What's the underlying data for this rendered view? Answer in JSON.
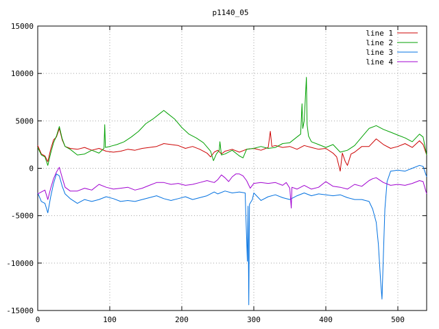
{
  "chart_data": {
    "type": "line",
    "title": "p1140_05",
    "xlabel": "",
    "ylabel": "",
    "xlim": [
      0,
      540
    ],
    "ylim": [
      -15000,
      15000
    ],
    "x_ticks": [
      0,
      100,
      200,
      300,
      400,
      500
    ],
    "y_ticks": [
      -15000,
      -10000,
      -5000,
      0,
      5000,
      10000,
      15000
    ],
    "grid": true,
    "legend_position": "top-right",
    "series": [
      {
        "name": "line 1",
        "color": "#cc0000",
        "points": [
          [
            0,
            2400
          ],
          [
            5,
            1500
          ],
          [
            10,
            1300
          ],
          [
            14,
            700
          ],
          [
            18,
            2000
          ],
          [
            22,
            3000
          ],
          [
            26,
            3300
          ],
          [
            30,
            4200
          ],
          [
            34,
            3000
          ],
          [
            38,
            2300
          ],
          [
            45,
            2100
          ],
          [
            55,
            2000
          ],
          [
            65,
            2200
          ],
          [
            75,
            1900
          ],
          [
            85,
            2100
          ],
          [
            95,
            1800
          ],
          [
            105,
            1700
          ],
          [
            115,
            1800
          ],
          [
            125,
            2000
          ],
          [
            135,
            1900
          ],
          [
            145,
            2100
          ],
          [
            155,
            2200
          ],
          [
            165,
            2300
          ],
          [
            175,
            2600
          ],
          [
            185,
            2500
          ],
          [
            195,
            2400
          ],
          [
            205,
            2100
          ],
          [
            215,
            2300
          ],
          [
            225,
            2000
          ],
          [
            235,
            1600
          ],
          [
            240,
            1200
          ],
          [
            245,
            1700
          ],
          [
            250,
            1900
          ],
          [
            255,
            1500
          ],
          [
            260,
            1800
          ],
          [
            270,
            2000
          ],
          [
            280,
            1700
          ],
          [
            290,
            2000
          ],
          [
            300,
            2100
          ],
          [
            310,
            1900
          ],
          [
            320,
            2200
          ],
          [
            323,
            3900
          ],
          [
            325,
            2300
          ],
          [
            330,
            2400
          ],
          [
            340,
            2200
          ],
          [
            350,
            2300
          ],
          [
            360,
            2000
          ],
          [
            370,
            2400
          ],
          [
            380,
            2200
          ],
          [
            390,
            2000
          ],
          [
            400,
            2100
          ],
          [
            410,
            1600
          ],
          [
            415,
            1200
          ],
          [
            420,
            -300
          ],
          [
            423,
            1600
          ],
          [
            427,
            700
          ],
          [
            430,
            300
          ],
          [
            435,
            1500
          ],
          [
            440,
            1700
          ],
          [
            450,
            2300
          ],
          [
            460,
            2300
          ],
          [
            470,
            3100
          ],
          [
            480,
            2500
          ],
          [
            490,
            2100
          ],
          [
            500,
            2300
          ],
          [
            510,
            2600
          ],
          [
            520,
            2200
          ],
          [
            530,
            2900
          ],
          [
            535,
            2500
          ],
          [
            540,
            1400
          ]
        ]
      },
      {
        "name": "line 2",
        "color": "#00a000",
        "points": [
          [
            0,
            2200
          ],
          [
            5,
            1400
          ],
          [
            10,
            1200
          ],
          [
            14,
            300
          ],
          [
            18,
            1600
          ],
          [
            22,
            2700
          ],
          [
            26,
            3400
          ],
          [
            30,
            4400
          ],
          [
            34,
            3100
          ],
          [
            38,
            2300
          ],
          [
            45,
            2000
          ],
          [
            55,
            1400
          ],
          [
            65,
            1500
          ],
          [
            75,
            1900
          ],
          [
            85,
            1600
          ],
          [
            92,
            2100
          ],
          [
            93,
            4600
          ],
          [
            94,
            2200
          ],
          [
            100,
            2300
          ],
          [
            110,
            2500
          ],
          [
            120,
            2800
          ],
          [
            130,
            3300
          ],
          [
            140,
            3900
          ],
          [
            150,
            4700
          ],
          [
            160,
            5200
          ],
          [
            170,
            5800
          ],
          [
            175,
            6100
          ],
          [
            180,
            5800
          ],
          [
            190,
            5200
          ],
          [
            200,
            4300
          ],
          [
            210,
            3600
          ],
          [
            220,
            3200
          ],
          [
            230,
            2700
          ],
          [
            240,
            1800
          ],
          [
            244,
            800
          ],
          [
            248,
            1500
          ],
          [
            252,
            1900
          ],
          [
            253,
            2800
          ],
          [
            255,
            1400
          ],
          [
            260,
            1500
          ],
          [
            270,
            1900
          ],
          [
            280,
            1300
          ],
          [
            285,
            1100
          ],
          [
            290,
            2000
          ],
          [
            300,
            2100
          ],
          [
            310,
            2300
          ],
          [
            320,
            2100
          ],
          [
            330,
            2200
          ],
          [
            340,
            2600
          ],
          [
            350,
            2700
          ],
          [
            360,
            3300
          ],
          [
            365,
            3600
          ],
          [
            367,
            6800
          ],
          [
            368,
            4200
          ],
          [
            370,
            5000
          ],
          [
            373,
            9600
          ],
          [
            374,
            4600
          ],
          [
            376,
            3400
          ],
          [
            380,
            2800
          ],
          [
            390,
            2500
          ],
          [
            400,
            2200
          ],
          [
            410,
            2500
          ],
          [
            420,
            1700
          ],
          [
            430,
            1900
          ],
          [
            440,
            2400
          ],
          [
            450,
            3300
          ],
          [
            460,
            4200
          ],
          [
            470,
            4500
          ],
          [
            480,
            4100
          ],
          [
            490,
            3800
          ],
          [
            500,
            3500
          ],
          [
            510,
            3200
          ],
          [
            520,
            2800
          ],
          [
            530,
            3600
          ],
          [
            535,
            3300
          ],
          [
            540,
            1400
          ]
        ]
      },
      {
        "name": "line 3",
        "color": "#0070e0",
        "points": [
          [
            0,
            -2600
          ],
          [
            5,
            -3500
          ],
          [
            10,
            -3700
          ],
          [
            14,
            -4700
          ],
          [
            18,
            -3000
          ],
          [
            22,
            -1600
          ],
          [
            26,
            -600
          ],
          [
            30,
            -800
          ],
          [
            34,
            -1900
          ],
          [
            38,
            -2700
          ],
          [
            45,
            -3200
          ],
          [
            55,
            -3700
          ],
          [
            65,
            -3300
          ],
          [
            75,
            -3500
          ],
          [
            85,
            -3300
          ],
          [
            95,
            -3000
          ],
          [
            105,
            -3200
          ],
          [
            115,
            -3500
          ],
          [
            125,
            -3400
          ],
          [
            135,
            -3500
          ],
          [
            145,
            -3300
          ],
          [
            155,
            -3100
          ],
          [
            165,
            -2900
          ],
          [
            175,
            -3200
          ],
          [
            185,
            -3400
          ],
          [
            195,
            -3200
          ],
          [
            205,
            -3000
          ],
          [
            215,
            -3300
          ],
          [
            225,
            -3100
          ],
          [
            235,
            -2900
          ],
          [
            245,
            -2500
          ],
          [
            250,
            -2700
          ],
          [
            260,
            -2400
          ],
          [
            270,
            -2600
          ],
          [
            280,
            -2500
          ],
          [
            288,
            -2600
          ],
          [
            291,
            -9800
          ],
          [
            292,
            -4000
          ],
          [
            293,
            -14400
          ],
          [
            294,
            -3800
          ],
          [
            298,
            -3300
          ],
          [
            300,
            -2600
          ],
          [
            305,
            -3000
          ],
          [
            310,
            -3400
          ],
          [
            320,
            -3000
          ],
          [
            330,
            -2800
          ],
          [
            340,
            -3100
          ],
          [
            350,
            -3300
          ],
          [
            360,
            -2900
          ],
          [
            370,
            -2600
          ],
          [
            380,
            -2900
          ],
          [
            390,
            -2700
          ],
          [
            400,
            -2800
          ],
          [
            410,
            -2900
          ],
          [
            420,
            -2800
          ],
          [
            430,
            -3100
          ],
          [
            440,
            -3300
          ],
          [
            450,
            -3300
          ],
          [
            460,
            -3500
          ],
          [
            465,
            -4300
          ],
          [
            470,
            -5700
          ],
          [
            473,
            -8000
          ],
          [
            476,
            -11800
          ],
          [
            478,
            -13800
          ],
          [
            480,
            -9000
          ],
          [
            482,
            -4300
          ],
          [
            485,
            -1400
          ],
          [
            490,
            -300
          ],
          [
            500,
            -200
          ],
          [
            510,
            -300
          ],
          [
            520,
            0
          ],
          [
            530,
            300
          ],
          [
            535,
            200
          ],
          [
            540,
            -900
          ]
        ]
      },
      {
        "name": "line 4",
        "color": "#a000d0",
        "points": [
          [
            0,
            -2700
          ],
          [
            5,
            -2500
          ],
          [
            10,
            -2300
          ],
          [
            14,
            -3300
          ],
          [
            18,
            -2100
          ],
          [
            22,
            -1100
          ],
          [
            26,
            -400
          ],
          [
            30,
            100
          ],
          [
            34,
            -1000
          ],
          [
            38,
            -2000
          ],
          [
            45,
            -2400
          ],
          [
            55,
            -2400
          ],
          [
            65,
            -2100
          ],
          [
            75,
            -2300
          ],
          [
            85,
            -1700
          ],
          [
            95,
            -2000
          ],
          [
            105,
            -2200
          ],
          [
            115,
            -2100
          ],
          [
            125,
            -2000
          ],
          [
            135,
            -2300
          ],
          [
            145,
            -2100
          ],
          [
            155,
            -1800
          ],
          [
            165,
            -1500
          ],
          [
            175,
            -1500
          ],
          [
            185,
            -1700
          ],
          [
            195,
            -1600
          ],
          [
            205,
            -1800
          ],
          [
            215,
            -1700
          ],
          [
            225,
            -1500
          ],
          [
            235,
            -1300
          ],
          [
            245,
            -1500
          ],
          [
            250,
            -1200
          ],
          [
            255,
            -700
          ],
          [
            260,
            -1000
          ],
          [
            265,
            -1400
          ],
          [
            270,
            -900
          ],
          [
            275,
            -600
          ],
          [
            280,
            -600
          ],
          [
            285,
            -800
          ],
          [
            290,
            -1300
          ],
          [
            295,
            -2100
          ],
          [
            300,
            -1600
          ],
          [
            310,
            -1500
          ],
          [
            320,
            -1600
          ],
          [
            330,
            -1500
          ],
          [
            340,
            -1800
          ],
          [
            345,
            -1500
          ],
          [
            350,
            -2100
          ],
          [
            352,
            -4200
          ],
          [
            353,
            -2000
          ],
          [
            360,
            -2200
          ],
          [
            370,
            -1800
          ],
          [
            380,
            -2200
          ],
          [
            390,
            -2000
          ],
          [
            400,
            -1400
          ],
          [
            410,
            -1900
          ],
          [
            420,
            -2000
          ],
          [
            430,
            -2200
          ],
          [
            440,
            -1700
          ],
          [
            450,
            -1900
          ],
          [
            460,
            -1300
          ],
          [
            465,
            -1100
          ],
          [
            470,
            -1000
          ],
          [
            480,
            -1500
          ],
          [
            490,
            -1800
          ],
          [
            500,
            -1700
          ],
          [
            510,
            -1800
          ],
          [
            520,
            -1600
          ],
          [
            530,
            -1300
          ],
          [
            535,
            -1400
          ],
          [
            540,
            -2700
          ]
        ]
      }
    ]
  }
}
